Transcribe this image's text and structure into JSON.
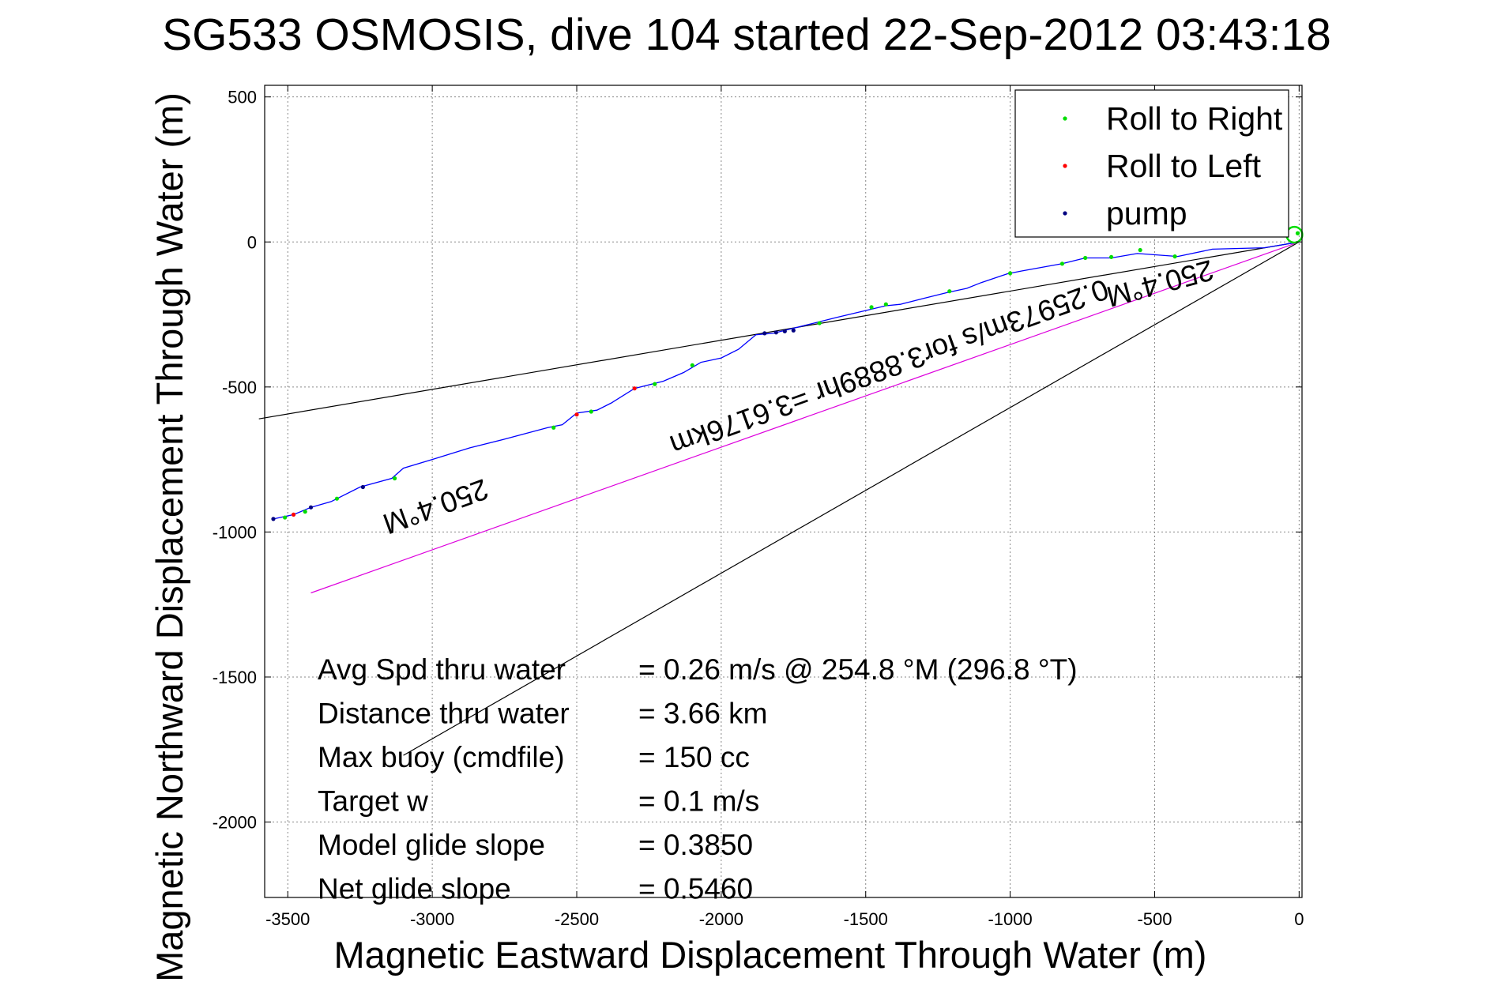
{
  "chart_data": {
    "type": "line",
    "title": "SG533 OSMOSIS, dive 104 started 22-Sep-2012 03:43:18",
    "xlabel": "Magnetic Eastward Displacement Through Water (m)",
    "ylabel": "Magnetic Northward Displacement Through Water (m)",
    "xlim": [
      -3580,
      10
    ],
    "ylim": [
      -2260,
      540
    ],
    "grid": true,
    "legend_position": "top-right",
    "x_ticks": [
      -3500,
      -3000,
      -2500,
      -2000,
      -1500,
      -1000,
      -500,
      0
    ],
    "y_ticks": [
      500,
      0,
      -500,
      -1000,
      -1500,
      -2000
    ],
    "x_tick_labels": [
      "-3500",
      "-3000",
      "-2500",
      "-2000",
      "-1500",
      "-1000",
      "-500",
      "0"
    ],
    "y_tick_labels": [
      "500",
      "0",
      "-500",
      "-1000",
      "-1500",
      "-2000"
    ],
    "legend": [
      {
        "label": "Roll to Right",
        "color": "#00dd00"
      },
      {
        "label": "Roll to Left",
        "color": "#ff0000"
      },
      {
        "label": "pump",
        "color": "#000080"
      }
    ],
    "track": {
      "color": "#0000ff",
      "points": [
        [
          0,
          0
        ],
        [
          -120,
          -20
        ],
        [
          -300,
          -25
        ],
        [
          -420,
          -50
        ],
        [
          -560,
          -40
        ],
        [
          -650,
          -55
        ],
        [
          -740,
          -55
        ],
        [
          -820,
          -75
        ],
        [
          -960,
          -100
        ],
        [
          -1010,
          -110
        ],
        [
          -1100,
          -140
        ],
        [
          -1150,
          -160
        ],
        [
          -1220,
          -175
        ],
        [
          -1300,
          -195
        ],
        [
          -1380,
          -215
        ],
        [
          -1430,
          -220
        ],
        [
          -1600,
          -260
        ],
        [
          -1680,
          -280
        ],
        [
          -1760,
          -300
        ],
        [
          -1820,
          -315
        ],
        [
          -1880,
          -320
        ],
        [
          -1940,
          -370
        ],
        [
          -2000,
          -400
        ],
        [
          -2070,
          -415
        ],
        [
          -2130,
          -450
        ],
        [
          -2200,
          -480
        ],
        [
          -2300,
          -505
        ],
        [
          -2380,
          -555
        ],
        [
          -2430,
          -580
        ],
        [
          -2500,
          -590
        ],
        [
          -2550,
          -630
        ],
        [
          -2600,
          -640
        ],
        [
          -2750,
          -680
        ],
        [
          -2870,
          -710
        ],
        [
          -3000,
          -750
        ],
        [
          -3100,
          -780
        ],
        [
          -3140,
          -815
        ],
        [
          -3250,
          -845
        ],
        [
          -3350,
          -895
        ],
        [
          -3420,
          -915
        ],
        [
          -3480,
          -940
        ],
        [
          -3550,
          -955
        ]
      ]
    },
    "markers": [
      {
        "x": -3550,
        "y": -955,
        "kind": "pump"
      },
      {
        "x": -3510,
        "y": -950,
        "kind": "right"
      },
      {
        "x": -3480,
        "y": -940,
        "kind": "left"
      },
      {
        "x": -3440,
        "y": -930,
        "kind": "right"
      },
      {
        "x": -3420,
        "y": -915,
        "kind": "pump"
      },
      {
        "x": -3330,
        "y": -885,
        "kind": "right"
      },
      {
        "x": -3240,
        "y": -845,
        "kind": "pump"
      },
      {
        "x": -3130,
        "y": -815,
        "kind": "right"
      },
      {
        "x": -2580,
        "y": -640,
        "kind": "right"
      },
      {
        "x": -2500,
        "y": -595,
        "kind": "left"
      },
      {
        "x": -2450,
        "y": -585,
        "kind": "right"
      },
      {
        "x": -2300,
        "y": -505,
        "kind": "left"
      },
      {
        "x": -2230,
        "y": -490,
        "kind": "right"
      },
      {
        "x": -2100,
        "y": -425,
        "kind": "right"
      },
      {
        "x": -1850,
        "y": -315,
        "kind": "pump"
      },
      {
        "x": -1810,
        "y": -312,
        "kind": "pump"
      },
      {
        "x": -1780,
        "y": -308,
        "kind": "pump"
      },
      {
        "x": -1750,
        "y": -305,
        "kind": "pump"
      },
      {
        "x": -1660,
        "y": -280,
        "kind": "right"
      },
      {
        "x": -1480,
        "y": -225,
        "kind": "right"
      },
      {
        "x": -1430,
        "y": -215,
        "kind": "right"
      },
      {
        "x": -1210,
        "y": -170,
        "kind": "right"
      },
      {
        "x": -1000,
        "y": -108,
        "kind": "right"
      },
      {
        "x": -820,
        "y": -75,
        "kind": "right"
      },
      {
        "x": -740,
        "y": -55,
        "kind": "right"
      },
      {
        "x": -650,
        "y": -52,
        "kind": "right"
      },
      {
        "x": -550,
        "y": -28,
        "kind": "right"
      },
      {
        "x": -430,
        "y": -50,
        "kind": "right"
      },
      {
        "x": -5,
        "y": 30,
        "kind": "right"
      }
    ],
    "reference_lines": [
      {
        "name": "upper",
        "color": "#000000",
        "from": [
          0,
          0
        ],
        "to": [
          -3600,
          -610
        ]
      },
      {
        "name": "lower",
        "color": "#000000",
        "from": [
          0,
          0
        ],
        "to": [
          -3100,
          -1770
        ]
      },
      {
        "name": "average",
        "color": "#dd00dd",
        "from": [
          0,
          0
        ],
        "to": [
          -3420,
          -1210
        ]
      }
    ],
    "annotations": [
      {
        "text": "250.4°M",
        "x": -3000,
        "y": -880,
        "rotation_deg": 160
      },
      {
        "text": "250.4°M",
        "x": -490,
        "y": -110,
        "rotation_deg": 165
      },
      {
        "text": "0.25973m/s for3.8889hr =3.6176km",
        "x": -1430,
        "y": -400,
        "rotation_deg": 160
      }
    ],
    "stats": [
      {
        "label": "Avg Spd thru water",
        "value": "=  0.26 m/s @ 254.8 °M (296.8 °T)"
      },
      {
        "label": "Distance thru water",
        "value": "=  3.66 km"
      },
      {
        "label": "Max buoy (cmdfile)",
        "value": "= 150 cc"
      },
      {
        "label": "Target w",
        "value": "= 0.1 m/s"
      },
      {
        "label": "Model glide slope",
        "value": "= 0.3850"
      },
      {
        "label": "Net glide slope",
        "value": "= 0.5460"
      }
    ]
  }
}
